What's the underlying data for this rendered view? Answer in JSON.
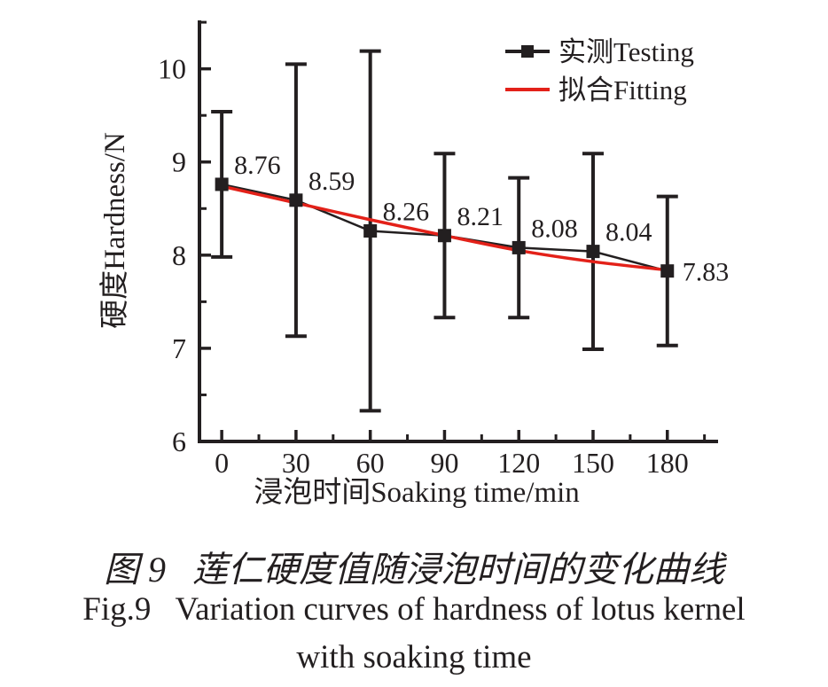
{
  "figure": {
    "caption_line1": "图 9   莲仁硬度值随浸泡时间的变化曲线",
    "caption_line2": "Fig.9   Variation curves of hardness of lotus kernel",
    "caption_line3": "with soaking time"
  },
  "colors": {
    "ink": "#231f20",
    "fitting_red": "#e32119",
    "background": "#ffffff"
  },
  "chart_data": {
    "type": "line",
    "title": "",
    "x": [
      0,
      30,
      60,
      90,
      120,
      150,
      180
    ],
    "series": [
      {
        "name": "实测Testing",
        "style": "line-with-square-markers-and-error-bars",
        "marker": "filled-square",
        "color": "#231f20",
        "values": [
          8.76,
          8.59,
          8.26,
          8.21,
          8.08,
          8.04,
          7.83
        ],
        "errors_plus": [
          0.78,
          1.46,
          1.93,
          0.88,
          0.75,
          1.05,
          0.8
        ],
        "errors_minus": [
          0.78,
          1.46,
          1.93,
          0.88,
          0.75,
          1.05,
          0.8
        ]
      },
      {
        "name": "拟合Fitting",
        "style": "smooth-fitted-line",
        "marker": "none",
        "color": "#e32119",
        "values": [
          8.74,
          8.56,
          8.38,
          8.21,
          8.05,
          7.93,
          7.84
        ]
      }
    ],
    "point_labels": [
      "8.76",
      "8.59",
      "8.26",
      "8.21",
      "8.08",
      "8.04",
      "7.83"
    ],
    "xlabel": "浸泡时间Soaking time/min",
    "ylabel": "硬度Hardness/N",
    "xlim": [
      -9,
      200.5
    ],
    "ylim": [
      6,
      10.52
    ],
    "x_major_ticks": [
      0,
      30,
      60,
      90,
      120,
      150,
      180
    ],
    "x_minor_tick_step": 15,
    "y_major_ticks": [
      6,
      7,
      8,
      9,
      10
    ],
    "y_minor_tick_step": 0.5,
    "grid": false,
    "legend": {
      "position": "top-right-inside",
      "entries": [
        "实测Testing",
        "拟合Fitting"
      ]
    }
  }
}
